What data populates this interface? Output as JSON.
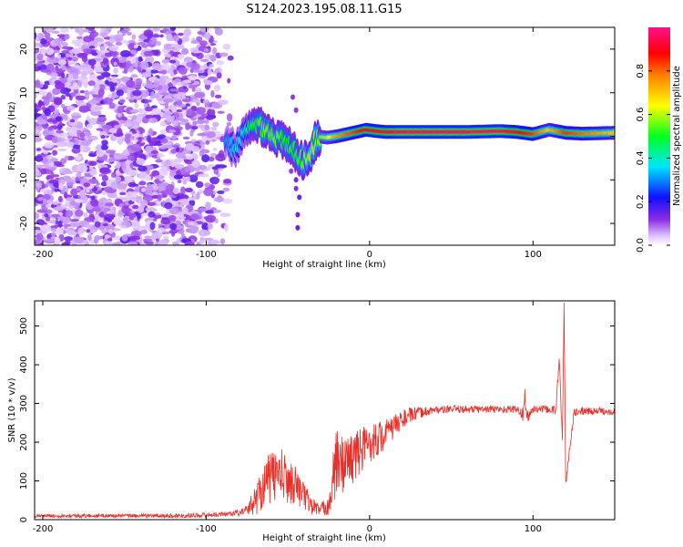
{
  "title": "S124.2023.195.08.11.G15",
  "chart_data": [
    {
      "type": "heatmap",
      "xlabel": "Height of straight line (km)",
      "ylabel": "Frequency (Hz)",
      "xlim": [
        -205,
        150
      ],
      "ylim": [
        -25,
        25
      ],
      "xticks": [
        "-200",
        "-100",
        "0",
        "100"
      ],
      "xtick_values": [
        -200,
        -100,
        0,
        100
      ],
      "yticks": [
        "-20",
        "-10",
        "0",
        "10",
        "20"
      ],
      "ytick_values": [
        -20,
        -10,
        0,
        10,
        20
      ],
      "colorbar": {
        "label": "Normalized spectral amplitude",
        "range": [
          0,
          1
        ],
        "ticks": [
          "0.0",
          "0.2",
          "0.4",
          "0.6",
          "0.8"
        ],
        "tick_values": [
          0.0,
          0.2,
          0.4,
          0.6,
          0.8
        ],
        "colormap": "rainbow (white-violet-blue-cyan-green-yellow-red-magenta)"
      },
      "noise_region_x": [
        -205,
        -88
      ],
      "ridge": {
        "x": [
          -88,
          -82,
          -76,
          -70,
          -64,
          -58,
          -52,
          -46,
          -40,
          -36,
          -32,
          -26,
          -20,
          -14,
          -8,
          -2,
          4,
          10,
          20,
          40,
          60,
          80,
          90,
          100,
          110,
          120,
          130,
          150
        ],
        "freq": [
          -1.5,
          -2.5,
          0.5,
          3.0,
          2.0,
          0.0,
          -1.5,
          -3.5,
          -5.5,
          -4.0,
          0.0,
          -0.3,
          0.0,
          0.5,
          1.0,
          1.5,
          1.2,
          1.0,
          1.0,
          1.0,
          1.0,
          1.2,
          1.0,
          0.5,
          1.5,
          0.8,
          0.6,
          0.8
        ],
        "amplitude": [
          0.3,
          0.35,
          0.4,
          0.5,
          0.55,
          0.55,
          0.5,
          0.5,
          0.55,
          0.6,
          0.55,
          0.6,
          0.75,
          0.8,
          0.85,
          0.9,
          0.9,
          0.92,
          0.95,
          0.95,
          0.95,
          0.95,
          0.9,
          0.85,
          0.7,
          0.85,
          0.8,
          0.7
        ]
      }
    },
    {
      "type": "line",
      "xlabel": "Height of straight line (km)",
      "ylabel": "SNR (10 * v/v)",
      "xlim": [
        -205,
        150
      ],
      "ylim": [
        0,
        565
      ],
      "xticks": [
        "-200",
        "-100",
        "0",
        "100"
      ],
      "xtick_values": [
        -200,
        -100,
        0,
        100
      ],
      "yticks": [
        "0",
        "100",
        "200",
        "300",
        "400",
        "500"
      ],
      "ytick_values": [
        0,
        100,
        200,
        300,
        400,
        500
      ],
      "color": "#e8302a",
      "series": [
        {
          "x": [
            -205,
            -180,
            -150,
            -120,
            -100,
            -90,
            -80,
            -75,
            -70,
            -65,
            -60,
            -55,
            -50,
            -45,
            -40,
            -35,
            -30,
            -25,
            -22,
            -20,
            -18,
            -15,
            -10,
            -5,
            0,
            5,
            10,
            15,
            20,
            25,
            30,
            35,
            40,
            50,
            60,
            70,
            80,
            90,
            94,
            95,
            96,
            100,
            105,
            110,
            114,
            116,
            118,
            119,
            120,
            125,
            130,
            140,
            150
          ],
          "y": [
            10,
            10,
            10,
            10,
            12,
            14,
            18,
            25,
            50,
            90,
            110,
            120,
            100,
            90,
            60,
            35,
            25,
            40,
            100,
            150,
            140,
            150,
            160,
            180,
            200,
            210,
            220,
            240,
            260,
            270,
            275,
            280,
            283,
            285,
            285,
            285,
            285,
            285,
            270,
            330,
            260,
            285,
            285,
            285,
            280,
            420,
            200,
            560,
            90,
            275,
            280,
            280,
            280
          ],
          "band": [
            4,
            5,
            5,
            6,
            6,
            6,
            8,
            12,
            40,
            60,
            70,
            70,
            60,
            50,
            35,
            25,
            15,
            30,
            90,
            90,
            80,
            70,
            70,
            60,
            55,
            45,
            40,
            30,
            25,
            20,
            15,
            12,
            10,
            10,
            10,
            10,
            10,
            10,
            20,
            20,
            20,
            10,
            10,
            10,
            15,
            15,
            15,
            15,
            15,
            10,
            10,
            10,
            10
          ]
        }
      ]
    }
  ]
}
